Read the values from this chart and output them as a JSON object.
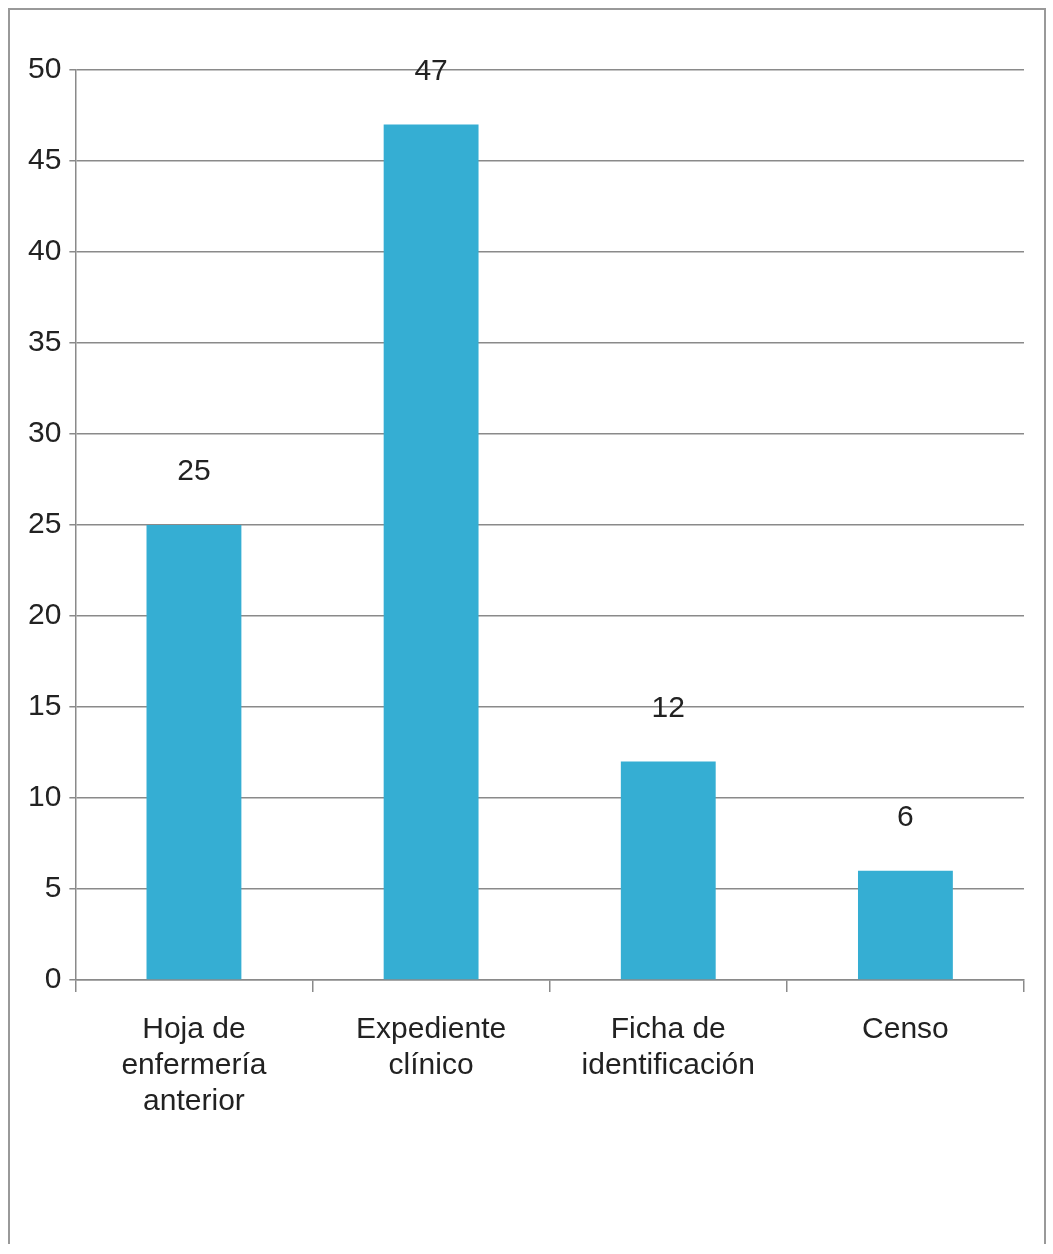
{
  "chart_data": {
    "type": "bar",
    "categories": [
      "Hoja de enfermería anterior",
      "Expediente clínico",
      "Ficha de identificación",
      "Censo"
    ],
    "values": [
      25,
      47,
      12,
      6
    ],
    "color": "#35aed3",
    "ylim": [
      0,
      50
    ],
    "yticks": [
      0,
      5,
      10,
      15,
      20,
      25,
      30,
      35,
      40,
      45,
      50
    ],
    "grid": "y",
    "data_labels": true,
    "legend": false
  }
}
